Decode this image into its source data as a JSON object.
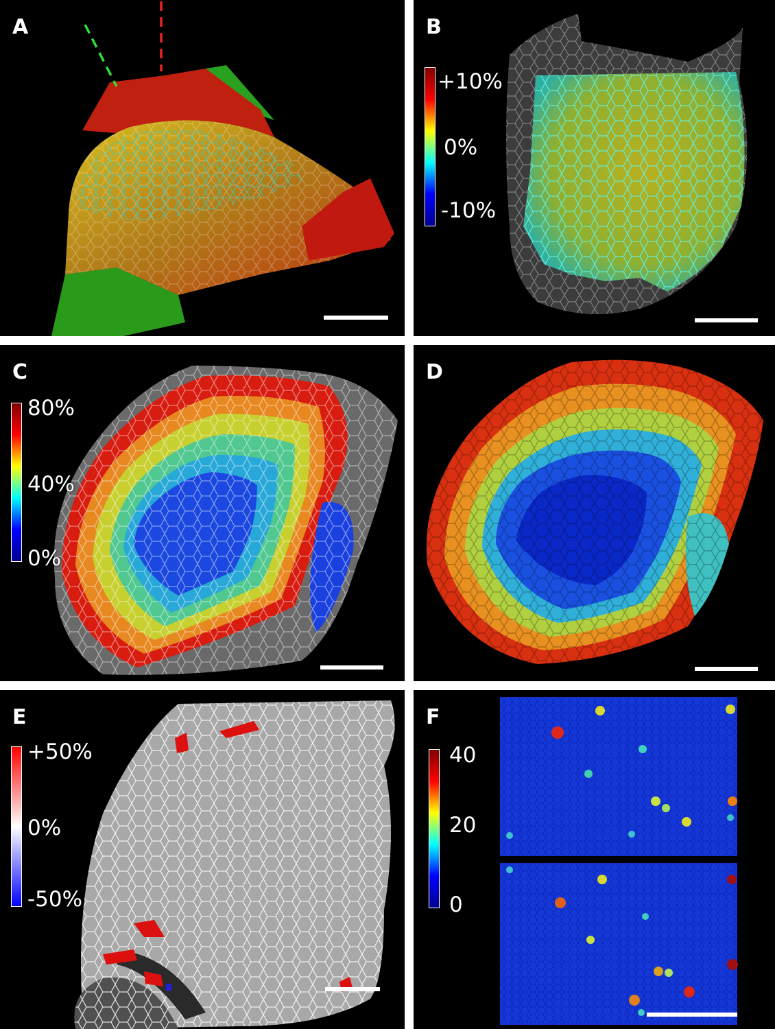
{
  "panels": {
    "a": {
      "label": "A"
    },
    "b": {
      "label": "B",
      "colorbar": {
        "top": "+10%",
        "mid": "0%",
        "bottom": "-10%"
      }
    },
    "c": {
      "label": "C",
      "colorbar": {
        "top": "80%",
        "mid": "40%",
        "bottom": "0%"
      }
    },
    "d": {
      "label": "D"
    },
    "e": {
      "label": "E",
      "colorbar": {
        "top": "+50%",
        "mid": "0%",
        "bottom": "-50%"
      }
    },
    "f": {
      "label": "F",
      "colorbar": {
        "top": "40",
        "mid": "20",
        "bottom": "0"
      }
    }
  },
  "colors": {
    "jet": [
      "#00008f",
      "#0000ff",
      "#00ffff",
      "#ffff00",
      "#ff0000",
      "#800000"
    ],
    "diverging": [
      "#0000ff",
      "#ffffff",
      "#ff0000"
    ],
    "guide_green": "#33dd33",
    "guide_red": "#ee2222"
  }
}
